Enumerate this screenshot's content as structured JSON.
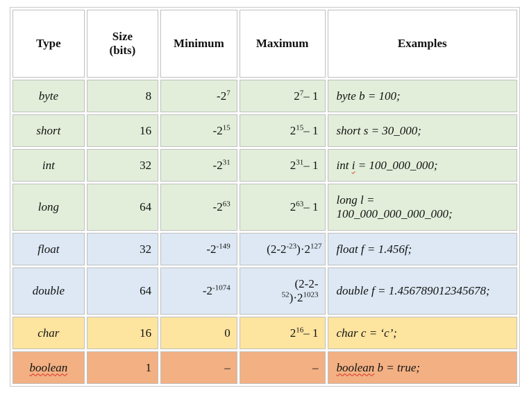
{
  "headers": {
    "type": "Type",
    "size_line1": "Size",
    "size_line2": "(bits)",
    "minimum": "Minimum",
    "maximum": "Maximum",
    "examples": "Examples"
  },
  "rows": [
    {
      "type": "byte",
      "size": "8",
      "min_base": "-2",
      "min_exp": "7",
      "max_base": "2",
      "max_exp": "7",
      "max_tail": "– 1",
      "example": "byte b = 100;"
    },
    {
      "type": "short",
      "size": "16",
      "min_base": "-2",
      "min_exp": "15",
      "max_base": "2",
      "max_exp": "15",
      "max_tail": "– 1",
      "example": "short s = 30_000;"
    },
    {
      "type": "int",
      "size": "32",
      "min_base": "-2",
      "min_exp": "31",
      "max_base": "2",
      "max_exp": "31",
      "max_tail": "– 1",
      "example_pre": "int ",
      "example_sq": "i",
      "example_post": " = 100_000_000;"
    },
    {
      "type": "long",
      "size": "64",
      "min_base": "-2",
      "min_exp": "63",
      "max_base": "2",
      "max_exp": "63",
      "max_tail": "– 1",
      "example_line1": "long l =",
      "example_line2": "100_000_000_000_000;"
    },
    {
      "type": "float",
      "size": "32",
      "min_base": "-2",
      "min_exp": "-149",
      "max_a": "(2-2",
      "max_a_exp": "-23",
      "max_b": ")·2",
      "max_b_exp": "127",
      "example": "float f = 1.456f;"
    },
    {
      "type": "double",
      "size": "64",
      "min_base": "-2",
      "min_exp": "-1074",
      "max_line1": "(2-2-",
      "max_exp1": "52",
      "max_mid": ")·2",
      "max_exp2": "1023",
      "example": "double f = 1.456789012345678;"
    },
    {
      "type": "char",
      "size": "16",
      "min": "0",
      "max_base": "2",
      "max_exp": "16",
      "max_tail": "– 1",
      "example": "char c = ‘c’;"
    },
    {
      "type": "boolean",
      "size": "1",
      "min": "–",
      "max": "–",
      "example_sq": "boolean",
      "example_post": " b = true;"
    }
  ],
  "colors": {
    "integer_rows": "#e2eed9",
    "float_rows": "#dde8f4",
    "char_row": "#fde49f",
    "boolean_row": "#f2b083"
  }
}
